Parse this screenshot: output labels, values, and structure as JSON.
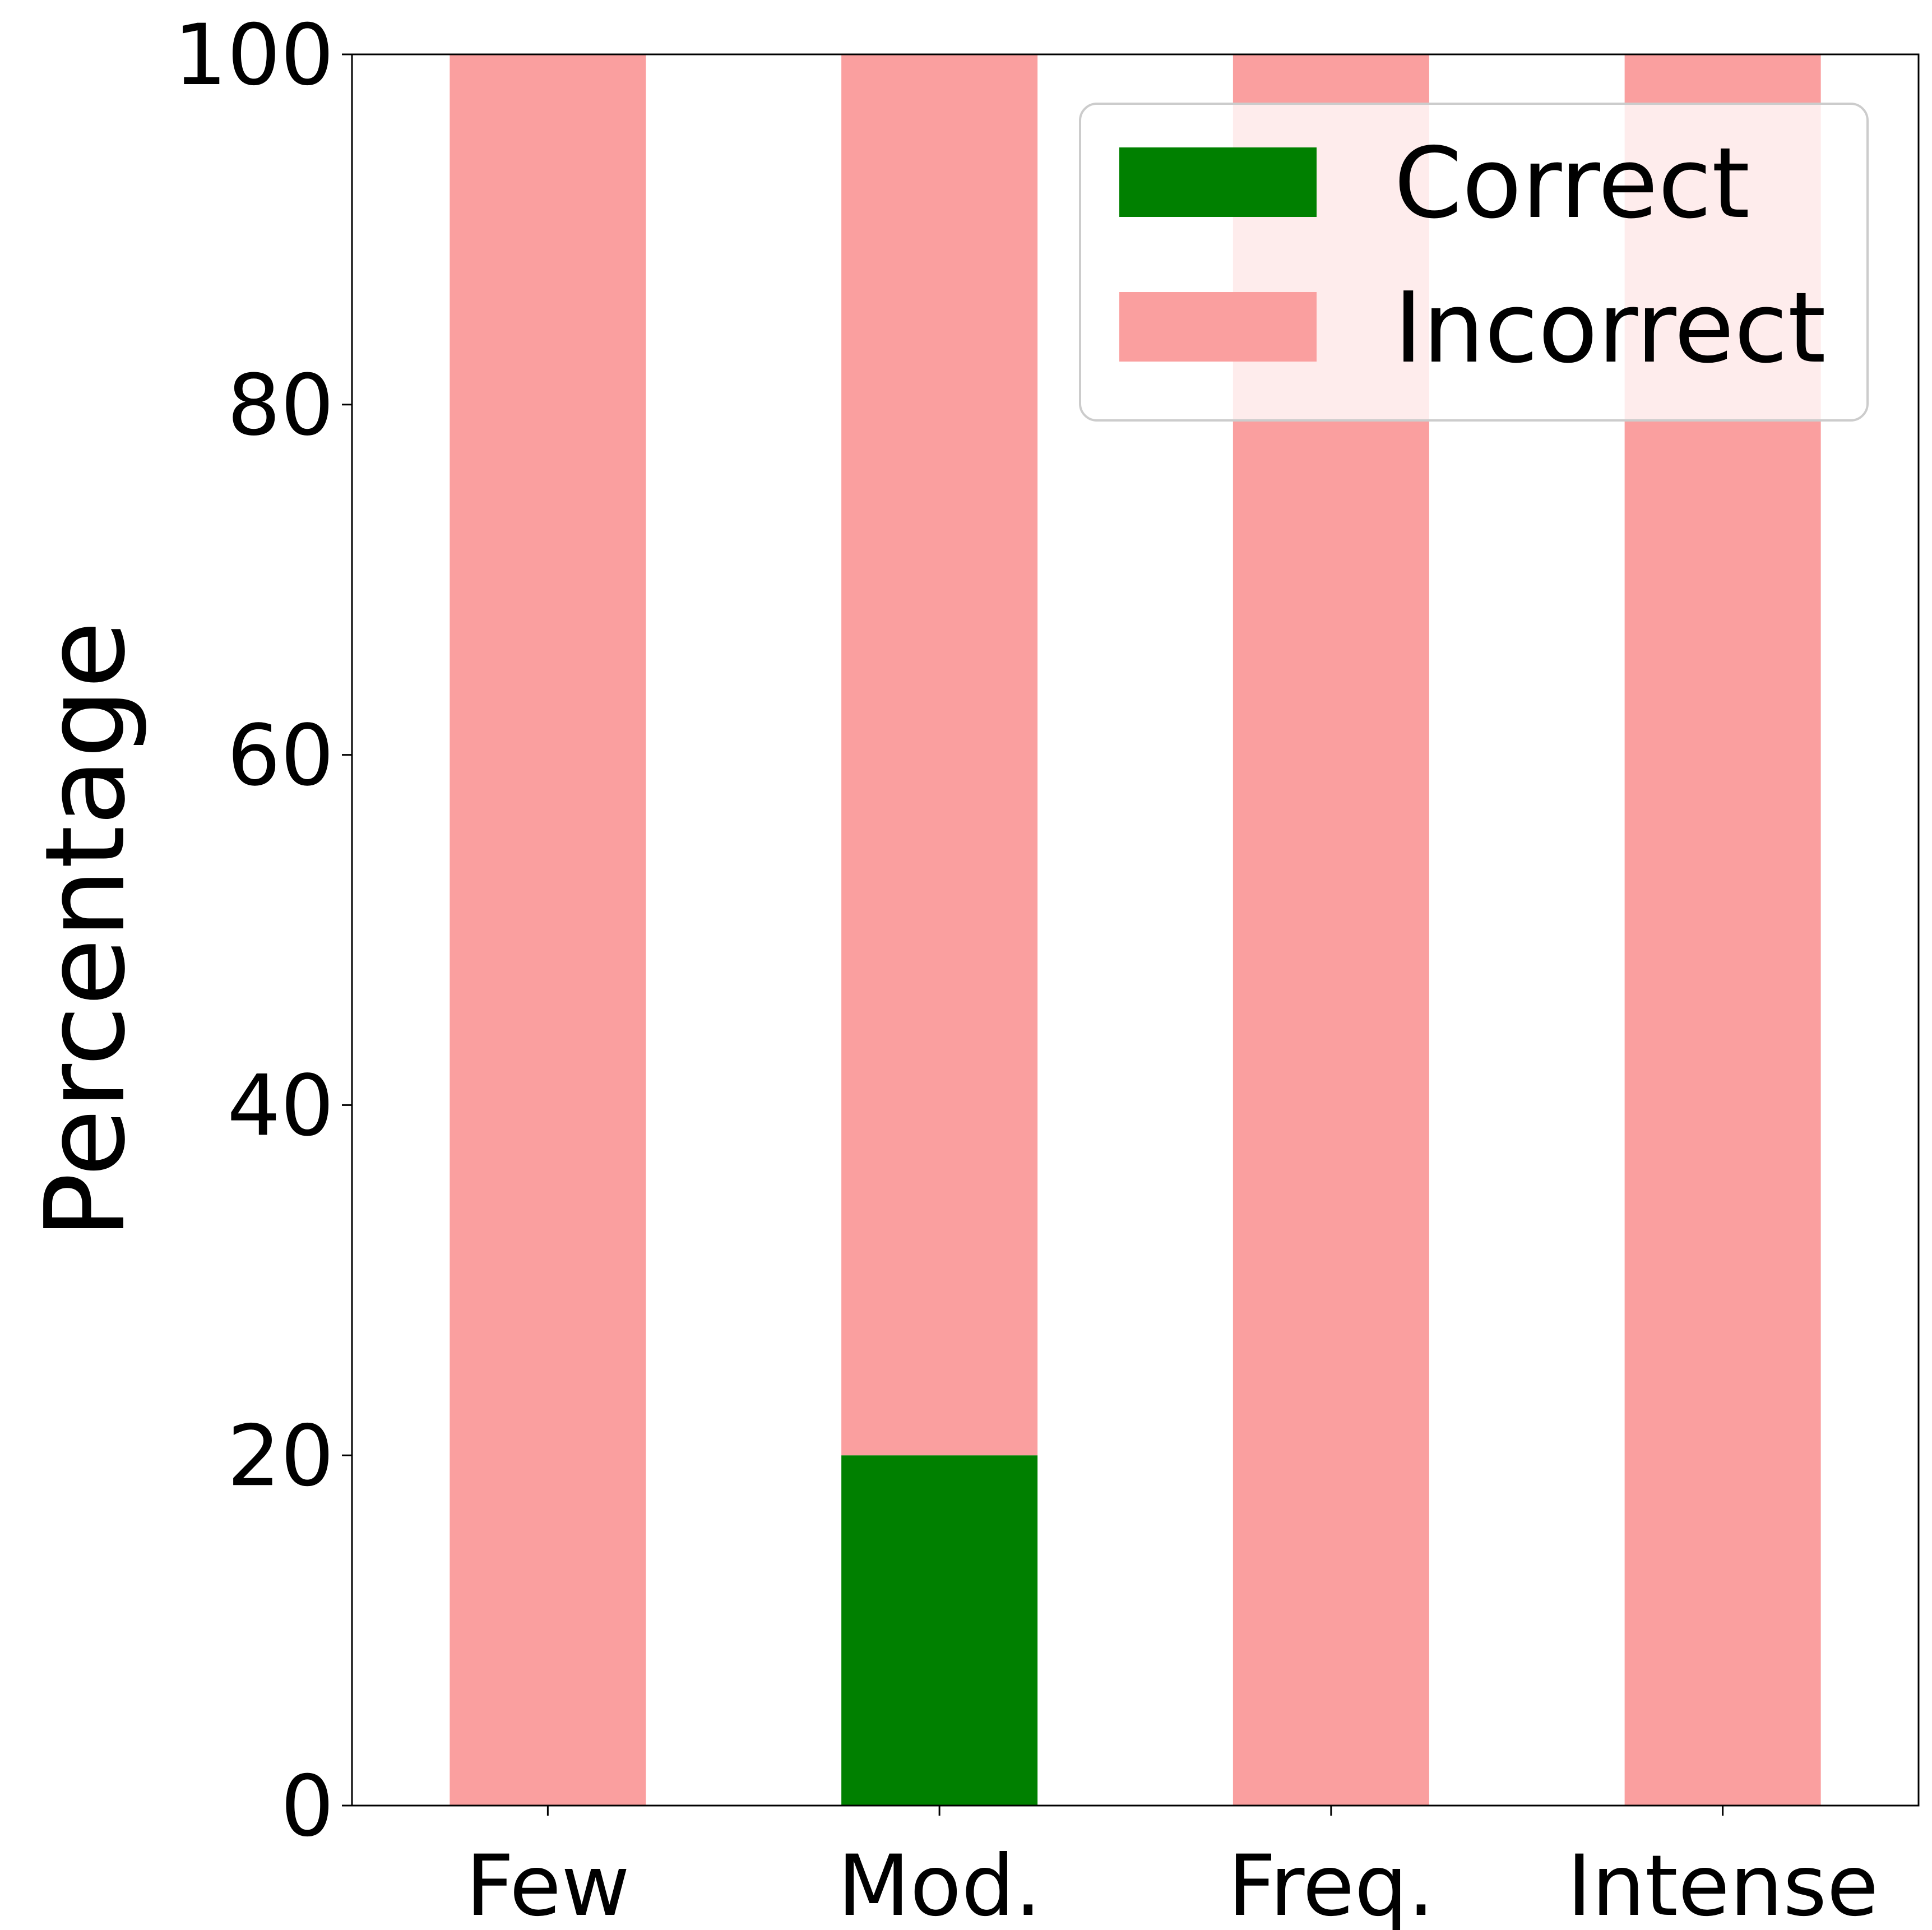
{
  "chart_data": {
    "type": "bar",
    "stacked": true,
    "title": "",
    "xlabel": "",
    "ylabel": "Percentage",
    "ylim": [
      0,
      100
    ],
    "yticks": [
      "0",
      "20",
      "40",
      "60",
      "80",
      "100"
    ],
    "categories": [
      "Few",
      "Mod.",
      "Freq.",
      "Intense"
    ],
    "series": [
      {
        "name": "Correct",
        "color": "#008000",
        "values": [
          0,
          20,
          0,
          0
        ]
      },
      {
        "name": "Incorrect",
        "color": "#fa9f9f",
        "values": [
          100,
          80,
          100,
          100
        ]
      }
    ],
    "grid": false,
    "legend_position": "top-right"
  }
}
